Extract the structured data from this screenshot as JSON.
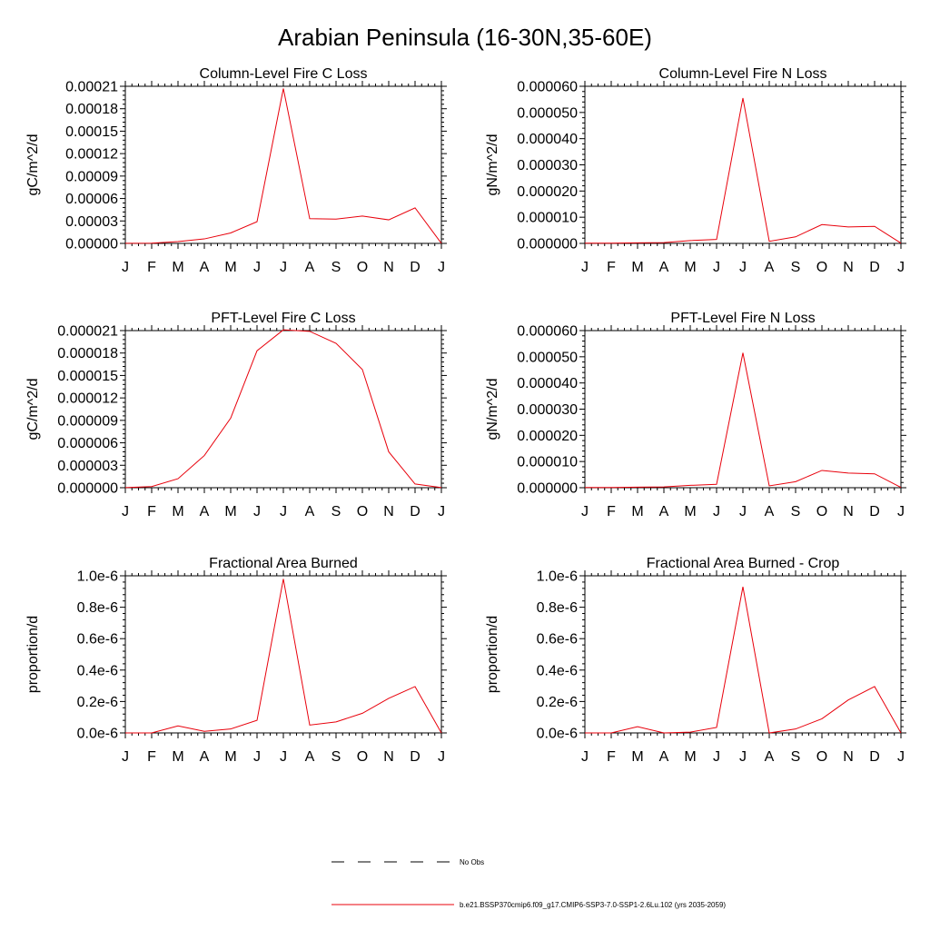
{
  "title": "Arabian Peninsula (16-30N,35-60E)",
  "colors": {
    "model_line": "#e8000b",
    "obs_line": "#000000",
    "axis": "#000000"
  },
  "legend": {
    "obs_label": "No Obs",
    "model_label": "b.e21.BSSP370cmip6.f09_g17.CMIP6-SSP3-7.0-SSP1-2.6Lu.102 (yrs 2035-2059)"
  },
  "chart_data": [
    {
      "type": "line",
      "title": "Column-Level Fire C Loss",
      "ylabel": "gC/m^2/d",
      "categories": [
        "J",
        "F",
        "M",
        "A",
        "M",
        "J",
        "J",
        "A",
        "S",
        "O",
        "N",
        "D",
        "J"
      ],
      "ylim": [
        0,
        0.00021
      ],
      "yticks": [
        "0.00000",
        "0.00003",
        "0.00006",
        "0.00009",
        "0.00012",
        "0.00015",
        "0.00018",
        "0.00021"
      ],
      "series": [
        {
          "values": [
            1e-07,
            3e-07,
            2.5e-06,
            6e-06,
            1.4e-05,
            2.9e-05,
            0.000207,
            3.3e-05,
            3.25e-05,
            3.65e-05,
            3.15e-05,
            4.75e-05,
            1e-07
          ]
        }
      ]
    },
    {
      "type": "line",
      "title": "Column-Level Fire N Loss",
      "ylabel": "gN/m^2/d",
      "categories": [
        "J",
        "F",
        "M",
        "A",
        "M",
        "J",
        "J",
        "A",
        "S",
        "O",
        "N",
        "D",
        "J"
      ],
      "ylim": [
        0,
        6e-05
      ],
      "yticks": [
        "0.000000",
        "0.000010",
        "0.000020",
        "0.000030",
        "0.000040",
        "0.000050",
        "0.000060"
      ],
      "series": [
        {
          "values": [
            1e-07,
            1e-07,
            2e-07,
            3e-07,
            1.1e-06,
            1.5e-06,
            5.55e-05,
            8e-07,
            2.5e-06,
            7.2e-06,
            6.3e-06,
            6.5e-06,
            1e-07
          ]
        }
      ]
    },
    {
      "type": "line",
      "title": "PFT-Level Fire C Loss",
      "ylabel": "gC/m^2/d",
      "categories": [
        "J",
        "F",
        "M",
        "A",
        "M",
        "J",
        "J",
        "A",
        "S",
        "O",
        "N",
        "D",
        "J"
      ],
      "ylim": [
        0,
        2.1e-05
      ],
      "yticks": [
        "0.000000",
        "0.000003",
        "0.000006",
        "0.000009",
        "0.000012",
        "0.000015",
        "0.000018",
        "0.000021"
      ],
      "series": [
        {
          "values": [
            1e-08,
            1.5e-07,
            1.2e-06,
            4.3e-06,
            9.3e-06,
            1.83e-05,
            2.11e-05,
            2.09e-05,
            1.93e-05,
            1.58e-05,
            4.8e-06,
            5e-07,
            1e-08
          ]
        }
      ]
    },
    {
      "type": "line",
      "title": "PFT-Level Fire N Loss",
      "ylabel": "gN/m^2/d",
      "categories": [
        "J",
        "F",
        "M",
        "A",
        "M",
        "J",
        "J",
        "A",
        "S",
        "O",
        "N",
        "D",
        "J"
      ],
      "ylim": [
        0,
        6e-05
      ],
      "yticks": [
        "0.000000",
        "0.000010",
        "0.000020",
        "0.000030",
        "0.000040",
        "0.000050",
        "0.000060"
      ],
      "series": [
        {
          "values": [
            1e-07,
            1e-07,
            2e-07,
            3e-07,
            9e-07,
            1.3e-06,
            5.15e-05,
            7e-07,
            2.3e-06,
            6.6e-06,
            5.6e-06,
            5.3e-06,
            1e-07
          ]
        }
      ]
    },
    {
      "type": "line",
      "title": "Fractional Area Burned",
      "ylabel": "proportion/d",
      "categories": [
        "J",
        "F",
        "M",
        "A",
        "M",
        "J",
        "J",
        "A",
        "S",
        "O",
        "N",
        "D",
        "J"
      ],
      "ylim": [
        0,
        1e-06
      ],
      "yticks": [
        "0.0e-6",
        "0.2e-6",
        "0.4e-6",
        "0.6e-6",
        "0.8e-6",
        "1.0e-6"
      ],
      "series": [
        {
          "values": [
            0.0,
            0.0,
            4.5e-08,
            1e-08,
            2.5e-08,
            8e-08,
            9.8e-07,
            5e-08,
            7e-08,
            1.25e-07,
            2.2e-07,
            2.95e-07,
            0.0
          ]
        }
      ]
    },
    {
      "type": "line",
      "title": "Fractional Area Burned - Crop",
      "ylabel": "proportion/d",
      "categories": [
        "J",
        "F",
        "M",
        "A",
        "M",
        "J",
        "J",
        "A",
        "S",
        "O",
        "N",
        "D",
        "J"
      ],
      "ylim": [
        0,
        1e-06
      ],
      "yticks": [
        "0.0e-6",
        "0.2e-6",
        "0.4e-6",
        "0.6e-6",
        "0.8e-6",
        "1.0e-6"
      ],
      "series": [
        {
          "values": [
            0.0,
            0.0,
            4e-08,
            0.0,
            5e-09,
            3.5e-08,
            9.3e-07,
            0.0,
            2.5e-08,
            9e-08,
            2.1e-07,
            2.95e-07,
            0.0
          ]
        }
      ]
    }
  ]
}
